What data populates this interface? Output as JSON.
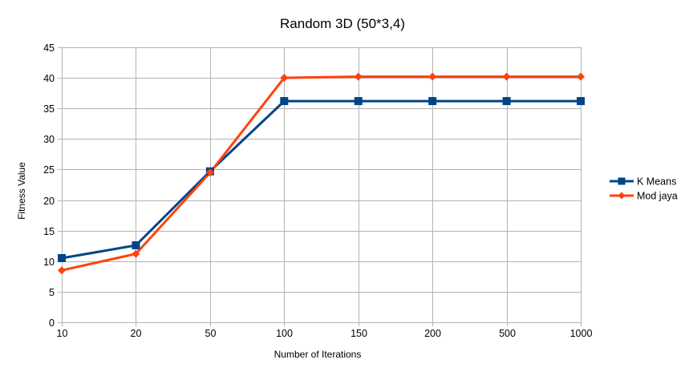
{
  "chart_data": {
    "type": "line",
    "title": "Random 3D (50*3,4)",
    "xlabel": "Number of Iterations",
    "ylabel": "Fitness Value",
    "categories": [
      "10",
      "20",
      "50",
      "100",
      "150",
      "200",
      "500",
      "1000"
    ],
    "ylim": [
      0,
      45
    ],
    "yticks": [
      "0",
      "5",
      "10",
      "15",
      "20",
      "25",
      "30",
      "35",
      "40",
      "45"
    ],
    "grid": true,
    "legend_position": "right",
    "series": [
      {
        "name": "K Means",
        "color": "#004586",
        "marker": "square",
        "values": [
          10.5,
          12.6,
          24.7,
          36.2,
          36.2,
          36.2,
          36.2,
          36.2
        ]
      },
      {
        "name": "Mod jaya",
        "color": "#ff420e",
        "marker": "diamond",
        "values": [
          8.5,
          11.2,
          24.5,
          40.0,
          40.2,
          40.2,
          40.2,
          40.2
        ]
      }
    ]
  }
}
